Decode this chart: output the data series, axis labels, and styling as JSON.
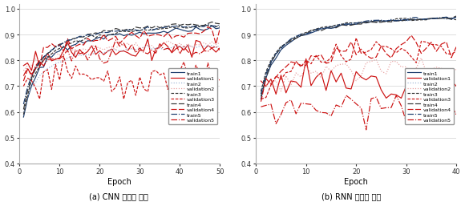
{
  "cnn_title": "(a) CNN 학습률 변화",
  "rnn_title": "(b) RNN 학습률 변화",
  "xlabel": "Epoch",
  "ylim": [
    0.4,
    1.02
  ],
  "cnn_xlim": [
    0,
    50
  ],
  "rnn_xlim": [
    0,
    40
  ],
  "cnn_xticks": [
    0,
    10,
    20,
    30,
    40,
    50
  ],
  "rnn_xticks": [
    0,
    10,
    20,
    30,
    40
  ],
  "yticks": [
    0.4,
    0.5,
    0.6,
    0.7,
    0.8,
    0.9,
    1.0
  ],
  "blue": "#1a3a6b",
  "red": "#cc1111",
  "blue_light": "#9bb3d4",
  "red_light": "#e8a0a0",
  "dark": "#333333"
}
